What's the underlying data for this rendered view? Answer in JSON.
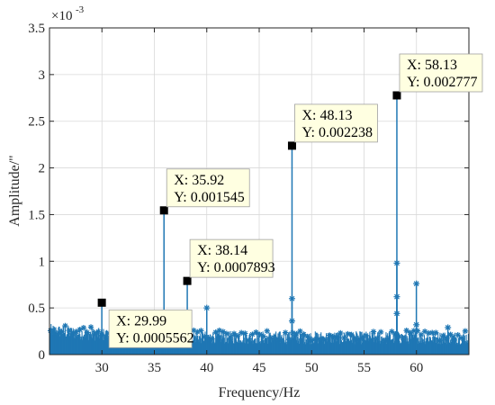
{
  "chart_data": {
    "type": "stem",
    "xlabel": "Frequency/Hz",
    "ylabel": "Amplitude/\"",
    "y_exponent_label": "×10",
    "y_exponent_power": "-3",
    "xlim": [
      25,
      65
    ],
    "ylim": [
      0,
      0.0035
    ],
    "x_ticks": [
      30,
      35,
      40,
      45,
      50,
      55,
      60
    ],
    "x_tick_labels": [
      "30",
      "35",
      "40",
      "45",
      "50",
      "55",
      "60"
    ],
    "y_ticks": [
      0,
      0.0005,
      0.001,
      0.0015,
      0.002,
      0.0025,
      0.003,
      0.0035
    ],
    "y_tick_labels": [
      "0",
      "0.5",
      "1",
      "1.5",
      "2",
      "2.5",
      "3",
      "3.5"
    ],
    "grid": true,
    "series_color": "#1f77b4",
    "marker": "asterisk",
    "noise_floor": {
      "x_range": [
        25,
        65
      ],
      "level": 0.00018,
      "spread": 7e-05
    },
    "stems": [
      {
        "x": 29.99,
        "y": 0.0005562
      },
      {
        "x": 35.92,
        "y": 0.001545
      },
      {
        "x": 38.14,
        "y": 0.0007893
      },
      {
        "x": 40.0,
        "y": 0.0005
      },
      {
        "x": 48.13,
        "y": 0.002238
      },
      {
        "x": 48.13,
        "y": 0.0006
      },
      {
        "x": 48.13,
        "y": 0.00036
      },
      {
        "x": 58.13,
        "y": 0.002777
      },
      {
        "x": 58.13,
        "y": 0.00098
      },
      {
        "x": 58.13,
        "y": 0.00062
      },
      {
        "x": 58.13,
        "y": 0.00044
      },
      {
        "x": 59.99,
        "y": 0.00076
      },
      {
        "x": 59.99,
        "y": 0.00032
      },
      {
        "x": 63.0,
        "y": 0.00029
      }
    ],
    "datatips": [
      {
        "x": 58.13,
        "y": 0.002777,
        "x_text": "X: 58.13",
        "y_text": "Y: 0.002777",
        "place": "above-right"
      },
      {
        "x": 48.13,
        "y": 0.002238,
        "x_text": "X: 48.13",
        "y_text": "Y: 0.002238",
        "place": "above-right"
      },
      {
        "x": 35.92,
        "y": 0.001545,
        "x_text": "X: 35.92",
        "y_text": "Y: 0.001545",
        "place": "above-right"
      },
      {
        "x": 38.14,
        "y": 0.0007893,
        "x_text": "X: 38.14",
        "y_text": "Y: 0.0007893",
        "place": "above-right"
      },
      {
        "x": 29.99,
        "y": 0.0005562,
        "x_text": "X: 29.99",
        "y_text": "Y: 0.0005562",
        "place": "below-right"
      }
    ]
  }
}
